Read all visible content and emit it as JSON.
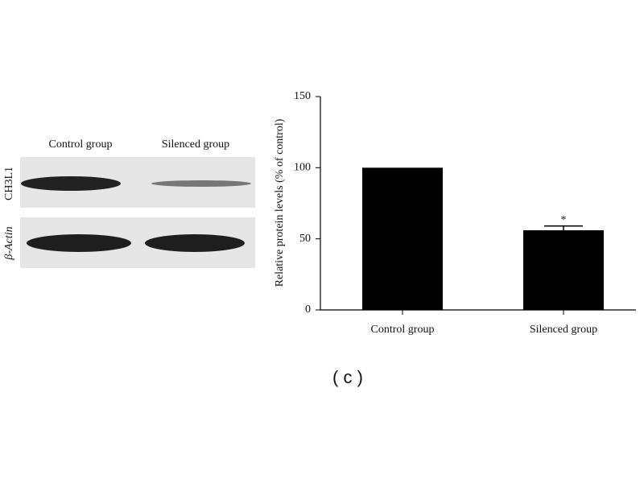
{
  "blot": {
    "lane_labels": [
      "Control group",
      "Silenced group"
    ],
    "row_labels": [
      "CH3L1",
      "β-Actin"
    ]
  },
  "chart_data": {
    "type": "bar",
    "categories": [
      "Control group",
      "Silenced group"
    ],
    "values": [
      100,
      56
    ],
    "errors": [
      null,
      3
    ],
    "annotations": [
      null,
      "*"
    ],
    "color": "#000000",
    "y_label": "Relative protein levels (% of control)",
    "ylim": [
      0,
      150
    ],
    "yticks": [
      0,
      50,
      100,
      150
    ],
    "grid": false
  },
  "panel_label": "( c )"
}
